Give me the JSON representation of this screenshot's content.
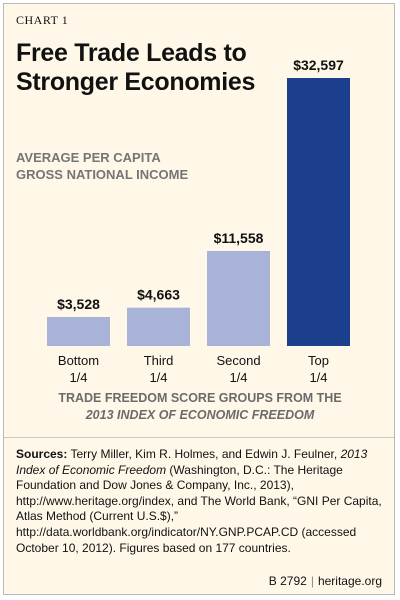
{
  "header": {
    "label": "CHART 1",
    "title_line1": "Free Trade Leads to",
    "title_line2": "Stronger Economies"
  },
  "chart_data": {
    "type": "bar",
    "ylabel_line1": "AVERAGE PER CAPITA",
    "ylabel_line2": "GROSS NATIONAL INCOME",
    "xlabel_line1": "TRADE FREEDOM SCORE GROUPS FROM THE",
    "xlabel_line2": "2013 INDEX OF ECONOMIC FREEDOM",
    "categories": [
      [
        "Bottom",
        "1/4"
      ],
      [
        "Third",
        "1/4"
      ],
      [
        "Second",
        "1/4"
      ],
      [
        "Top",
        "1/4"
      ]
    ],
    "values": [
      3528,
      4663,
      11558,
      32597
    ],
    "data_labels": [
      "$3,528",
      "$4,663",
      "$11,558",
      "$32,597"
    ],
    "colors": [
      "#a9b3d8",
      "#a9b3d8",
      "#a9b3d8",
      "#1b3f8c"
    ],
    "ylim": [
      0,
      32597
    ],
    "grid": false,
    "legend": "none"
  },
  "sources": {
    "lead": "Sources:",
    "text1": " Terry Miller, Kim R. Holmes, and Edwin J. Feulner, ",
    "italic": "2013 Index of Economic Freedom",
    "text2": " (Washington, D.C.: The Heritage Foundation and Dow Jones & Company, Inc., 2013), http://www.heritage.org/index, and The World Bank, “GNI Per Capita, Atlas Method (Current U.S.$),” http://data.worldbank.org/indicator/NY.GNP.PCAP.CD (accessed October 10, 2012). Figures based on 177 countries."
  },
  "footer": {
    "code": "B 2792",
    "site": "heritage.org"
  }
}
